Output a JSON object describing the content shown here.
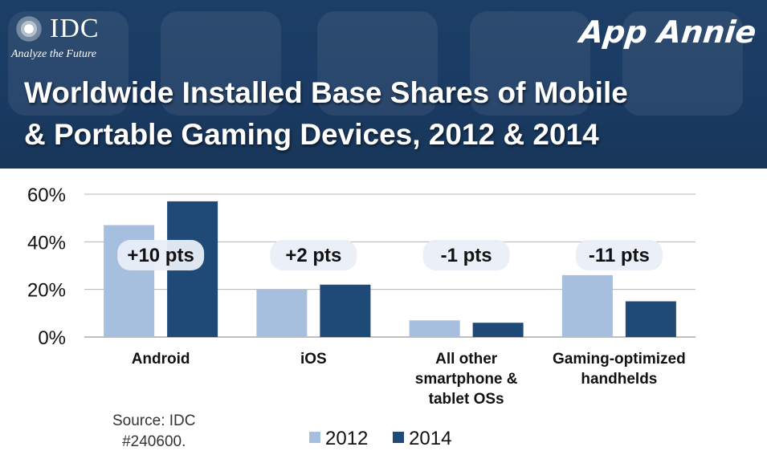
{
  "header": {
    "logo_text": "IDC",
    "logo_tagline": "Analyze the Future",
    "brand_text": "App Annie",
    "title_line1": "Worldwide Installed Base Shares of Mobile",
    "title_line2": "& Portable Gaming Devices, 2012 & 2014"
  },
  "source": {
    "line1": "Source: IDC",
    "line2": "#240600."
  },
  "colors": {
    "series_2012": "#a6bfdf",
    "series_2014": "#1f4a78",
    "header_bg": "#1c3f66"
  },
  "chart_data": {
    "type": "bar",
    "title": "Worldwide Installed Base Shares of Mobile & Portable Gaming Devices, 2012 & 2014",
    "xlabel": "",
    "ylabel": "",
    "ylim": [
      0,
      60
    ],
    "yticks": [
      "0%",
      "20%",
      "40%",
      "60%"
    ],
    "grid": true,
    "categories": [
      [
        "Android"
      ],
      [
        "iOS"
      ],
      [
        "All other",
        "smartphone &",
        "tablet OSs"
      ],
      [
        "Gaming-optimized",
        "handhelds"
      ]
    ],
    "series": [
      {
        "name": "2012",
        "values": [
          47,
          20,
          7,
          26
        ]
      },
      {
        "name": "2014",
        "values": [
          57,
          22,
          6,
          15
        ]
      }
    ],
    "annotations": [
      "+10 pts",
      "+2 pts",
      "-1 pts",
      "-11 pts"
    ],
    "legend_position": "bottom"
  }
}
